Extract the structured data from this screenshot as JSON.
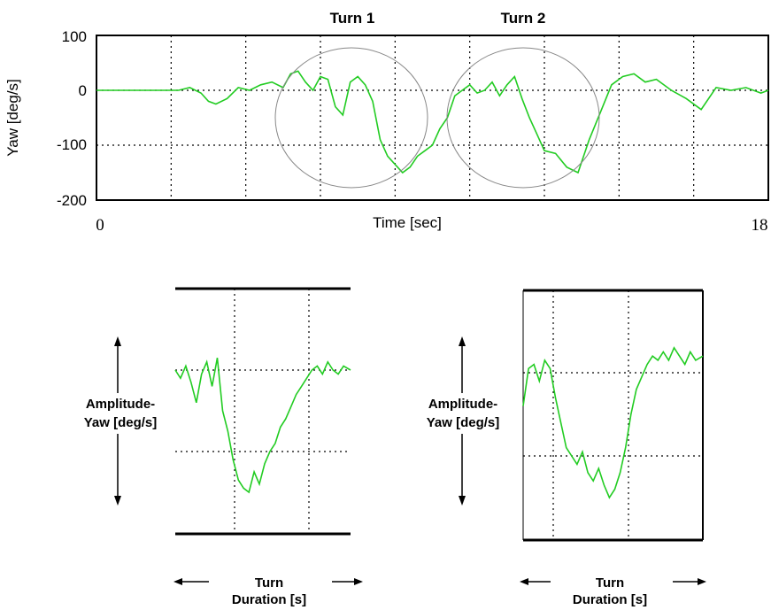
{
  "main_chart": {
    "ylabel": "Yaw [deg/s]",
    "xlabel": "Time [sec]",
    "y_ticks": [
      "100",
      "0",
      "-100",
      "-200"
    ],
    "x_tick_start": "0",
    "x_tick_end": "18",
    "annotations": [
      "Turn 1",
      "Turn 2"
    ]
  },
  "detail_1": {
    "amplitude_label_line1": "Amplitude-",
    "amplitude_label_line2": "Yaw [deg/s]",
    "duration_label_line1": "Turn",
    "duration_label_line2": "Duration [s]"
  },
  "detail_2": {
    "amplitude_label_line1": "Amplitude-",
    "amplitude_label_line2": "Yaw [deg/s]",
    "duration_label_line1": "Turn",
    "duration_label_line2": "Duration [s]"
  },
  "chart_data": [
    {
      "type": "line",
      "ylabel": "Yaw [deg/s]",
      "xlabel": "Time [sec]",
      "xlim": [
        0,
        18
      ],
      "ylim": [
        -200,
        100
      ],
      "grid": true,
      "annotations": [
        "Turn 1",
        "Turn 2"
      ],
      "line_color": "#22cc22",
      "series": [
        {
          "x": [
            0,
            1,
            2,
            2.2,
            2.5,
            2.8,
            3.0,
            3.2,
            3.5,
            3.8,
            4.1,
            4.4,
            4.7,
            5.0,
            5.2,
            5.4,
            5.6,
            5.8,
            6.0,
            6.2,
            6.4,
            6.6,
            6.8,
            7.0,
            7.2,
            7.4,
            7.6,
            7.8,
            8.0,
            8.2,
            8.4,
            8.6,
            8.8,
            9.0,
            9.2,
            9.4,
            9.6,
            9.8,
            10.0,
            10.2,
            10.4,
            10.6,
            10.8,
            11.0,
            11.2,
            11.4,
            11.6,
            11.8,
            12.0,
            12.3,
            12.6,
            12.9,
            13.2,
            13.5,
            13.8,
            14.1,
            14.4,
            14.7,
            15.0,
            15.4,
            15.8,
            16.2,
            16.6,
            17.0,
            17.4,
            17.8,
            18.0
          ],
          "y": [
            0,
            0,
            0,
            0,
            5,
            -5,
            -20,
            -25,
            -15,
            5,
            0,
            10,
            15,
            5,
            30,
            35,
            15,
            0,
            25,
            20,
            -30,
            -45,
            15,
            25,
            10,
            -20,
            -90,
            -120,
            -135,
            -150,
            -140,
            -120,
            -110,
            -100,
            -70,
            -50,
            -10,
            0,
            10,
            -5,
            0,
            15,
            -10,
            10,
            25,
            -15,
            -50,
            -80,
            -110,
            -115,
            -140,
            -150,
            -90,
            -40,
            10,
            25,
            30,
            15,
            20,
            0,
            -15,
            -35,
            5,
            0,
            5,
            -5,
            0
          ]
        }
      ]
    },
    {
      "type": "line",
      "title": "",
      "xlabel": "Turn Duration [s]",
      "ylabel": "Amplitude- Yaw [deg/s]",
      "line_color": "#22cc22",
      "series": [
        {
          "x": [
            0,
            0.03,
            0.06,
            0.09,
            0.12,
            0.15,
            0.18,
            0.21,
            0.24,
            0.27,
            0.3,
            0.33,
            0.36,
            0.39,
            0.42,
            0.45,
            0.48,
            0.51,
            0.54,
            0.57,
            0.6,
            0.63,
            0.66,
            0.69,
            0.72,
            0.75,
            0.78,
            0.81,
            0.84,
            0.87,
            0.9,
            0.93,
            0.96,
            1.0
          ],
          "y": [
            0,
            -10,
            5,
            -15,
            -40,
            -5,
            10,
            -20,
            15,
            -50,
            -75,
            -110,
            -135,
            -145,
            -150,
            -125,
            -140,
            -115,
            -100,
            -90,
            -70,
            -60,
            -45,
            -30,
            -20,
            -10,
            0,
            5,
            -5,
            10,
            0,
            -5,
            5,
            0
          ]
        }
      ]
    },
    {
      "type": "line",
      "title": "",
      "xlabel": "Turn Duration [s]",
      "ylabel": "Amplitude- Yaw [deg/s]",
      "line_color": "#22cc22",
      "series": [
        {
          "x": [
            0,
            0.03,
            0.06,
            0.09,
            0.12,
            0.15,
            0.18,
            0.21,
            0.24,
            0.27,
            0.3,
            0.33,
            0.36,
            0.39,
            0.42,
            0.45,
            0.48,
            0.51,
            0.54,
            0.57,
            0.6,
            0.63,
            0.66,
            0.69,
            0.72,
            0.75,
            0.78,
            0.81,
            0.84,
            0.87,
            0.9,
            0.93,
            0.96,
            1.0
          ],
          "y": [
            -40,
            5,
            10,
            -10,
            15,
            5,
            -30,
            -60,
            -90,
            -100,
            -110,
            -95,
            -120,
            -130,
            -115,
            -135,
            -150,
            -140,
            -120,
            -90,
            -50,
            -20,
            -5,
            10,
            20,
            15,
            25,
            15,
            30,
            20,
            10,
            25,
            15,
            20
          ]
        }
      ]
    }
  ]
}
